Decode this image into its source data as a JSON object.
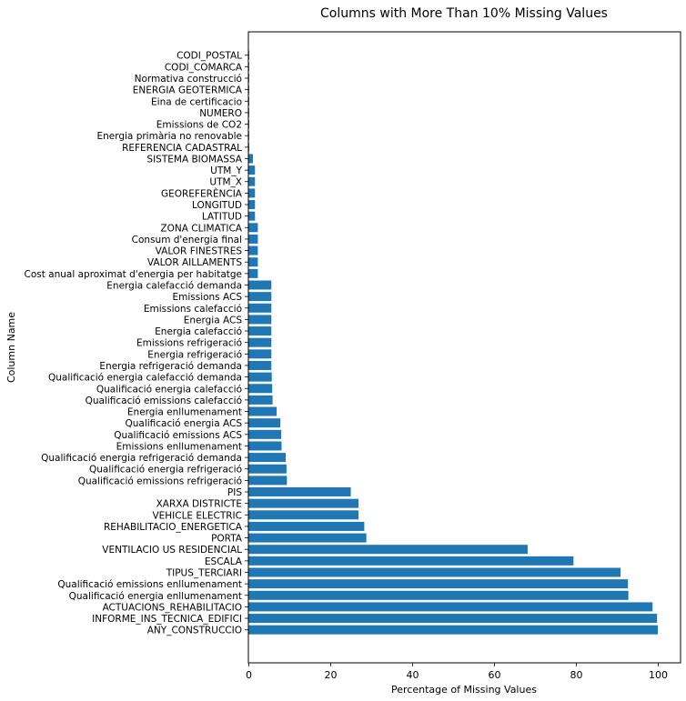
{
  "chart_data": {
    "type": "bar",
    "orientation": "horizontal",
    "title": "Columns with More Than 10% Missing Values",
    "xlabel": "Percentage of Missing Values",
    "ylabel": "Column Name",
    "xlim": [
      0,
      105
    ],
    "xticks": [
      "0",
      "20",
      "40",
      "60",
      "80",
      "100"
    ],
    "bar_color": "#1f77b4",
    "grid": false,
    "categories": [
      "ANY_CONSTRUCCIO",
      "INFORME_INS_TECNICA_EDIFICI",
      "ACTUACIONS_REHABILITACIO",
      "Qualificació energia enllumenament",
      "Qualificació emissions enllumenament",
      "TIPUS_TERCIARI",
      "ESCALA",
      "VENTILACIO US RESIDENCIAL",
      "PORTA",
      "REHABILITACIO_ENERGETICA",
      "VEHICLE ELECTRIC",
      "XARXA DISTRICTE",
      "PIS",
      "Qualificació emissions refrigeració",
      "Qualificació energia refrigeració",
      "Qualificació energia refrigeració demanda",
      "Emissions enllumenament",
      "Qualificació emissions ACS",
      "Qualificació energia ACS",
      "Energia enllumenament",
      "Qualificació emissions calefacció",
      "Qualificació energia calefacció",
      "Qualificació energia calefacció demanda",
      "Energia refrigeració demanda",
      "Energia refrigeració",
      "Emissions refrigeració",
      "Energia calefacció",
      "Energia ACS",
      "Emissions calefacció",
      "Emissions ACS",
      "Energia calefacció demanda",
      "Cost anual aproximat d'energia per habitatge",
      "VALOR AILLAMENTS",
      "VALOR FINESTRES",
      "Consum d'energia final",
      "ZONA CLIMATICA",
      "LATITUD",
      "LONGITUD",
      "GEOREFERÈNCIA",
      "UTM_X",
      "UTM_Y",
      "SISTEMA BIOMASSA",
      "REFERENCIA CADASTRAL",
      "Energia primària no renovable",
      "Emissions de CO2",
      "NUMERO",
      "Eina de certificacio",
      "ENERGIA GEOTERMICA",
      "Normativa construcció",
      "CODI_COMARCA",
      "CODI_POSTAL"
    ],
    "values": [
      99.9,
      99.7,
      98.6,
      92.7,
      92.6,
      90.8,
      79.3,
      68.1,
      28.7,
      28.2,
      26.8,
      26.8,
      24.9,
      9.3,
      9.2,
      9.0,
      8.0,
      7.9,
      7.7,
      6.8,
      5.8,
      5.7,
      5.6,
      5.5,
      5.5,
      5.5,
      5.5,
      5.5,
      5.5,
      5.5,
      5.5,
      2.2,
      2.2,
      2.2,
      2.2,
      2.2,
      1.5,
      1.5,
      1.5,
      1.5,
      1.5,
      1.0,
      0.1,
      0.1,
      0.1,
      0.1,
      0.1,
      0.1,
      0.1,
      0.1,
      0.1
    ]
  }
}
